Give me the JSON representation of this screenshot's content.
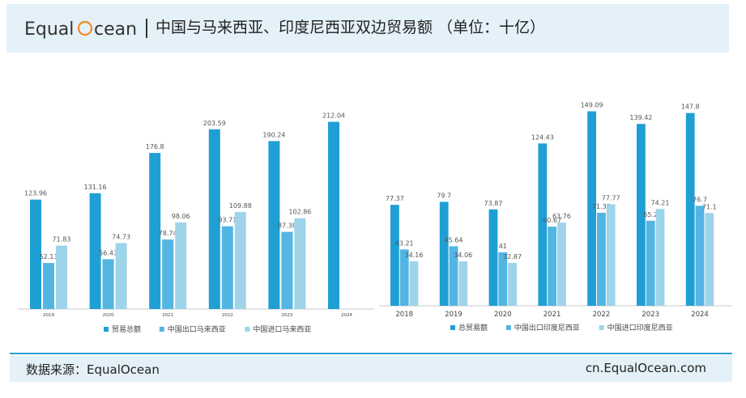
{
  "header": {
    "logo_text_1": "Equal",
    "logo_text_2": "cean",
    "title": "中国与马来西亚、印度尼西亚双边贸易额 （单位：十亿）"
  },
  "footer": {
    "source": "数据来源：EqualOcean",
    "site": "cn.EqualOcean.com"
  },
  "colors": {
    "total": "#1f9fd4",
    "export": "#52b5e2",
    "import": "#9ed4ea",
    "brand_orange": "#f08a24",
    "brand_blue": "#2a9fd6"
  },
  "chart_data": [
    {
      "type": "bar",
      "title": "",
      "categories": [
        "2019",
        "2020",
        "2021",
        "2022",
        "2023",
        "2024"
      ],
      "ylim": [
        0,
        230
      ],
      "grid": false,
      "legend": "bottom",
      "series": [
        {
          "name": "贸易总额",
          "values": [
            123.96,
            131.16,
            176.8,
            203.59,
            190.24,
            212.04
          ]
        },
        {
          "name": "中国出口马来西亚",
          "values": [
            52.13,
            56.43,
            78.74,
            93.71,
            87.38,
            null
          ]
        },
        {
          "name": "中国进口马来西亚",
          "values": [
            71.83,
            74.73,
            98.06,
            109.88,
            102.86,
            null
          ]
        }
      ]
    },
    {
      "type": "bar",
      "title": "",
      "categories": [
        "2018",
        "2019",
        "2020",
        "2021",
        "2022",
        "2023",
        "2024"
      ],
      "ylim": [
        0,
        160
      ],
      "grid": false,
      "legend": "bottom",
      "series": [
        {
          "name": "总贸易额",
          "values": [
            77.37,
            79.7,
            73.87,
            124.43,
            149.09,
            139.42,
            147.8
          ]
        },
        {
          "name": "中国出口印度尼西亚",
          "values": [
            43.21,
            45.64,
            41,
            60.67,
            71.32,
            65.2,
            76.7
          ]
        },
        {
          "name": "中国进口印度尼西亚",
          "values": [
            34.16,
            34.06,
            32.87,
            63.76,
            77.77,
            74.21,
            71.1
          ]
        }
      ]
    }
  ]
}
